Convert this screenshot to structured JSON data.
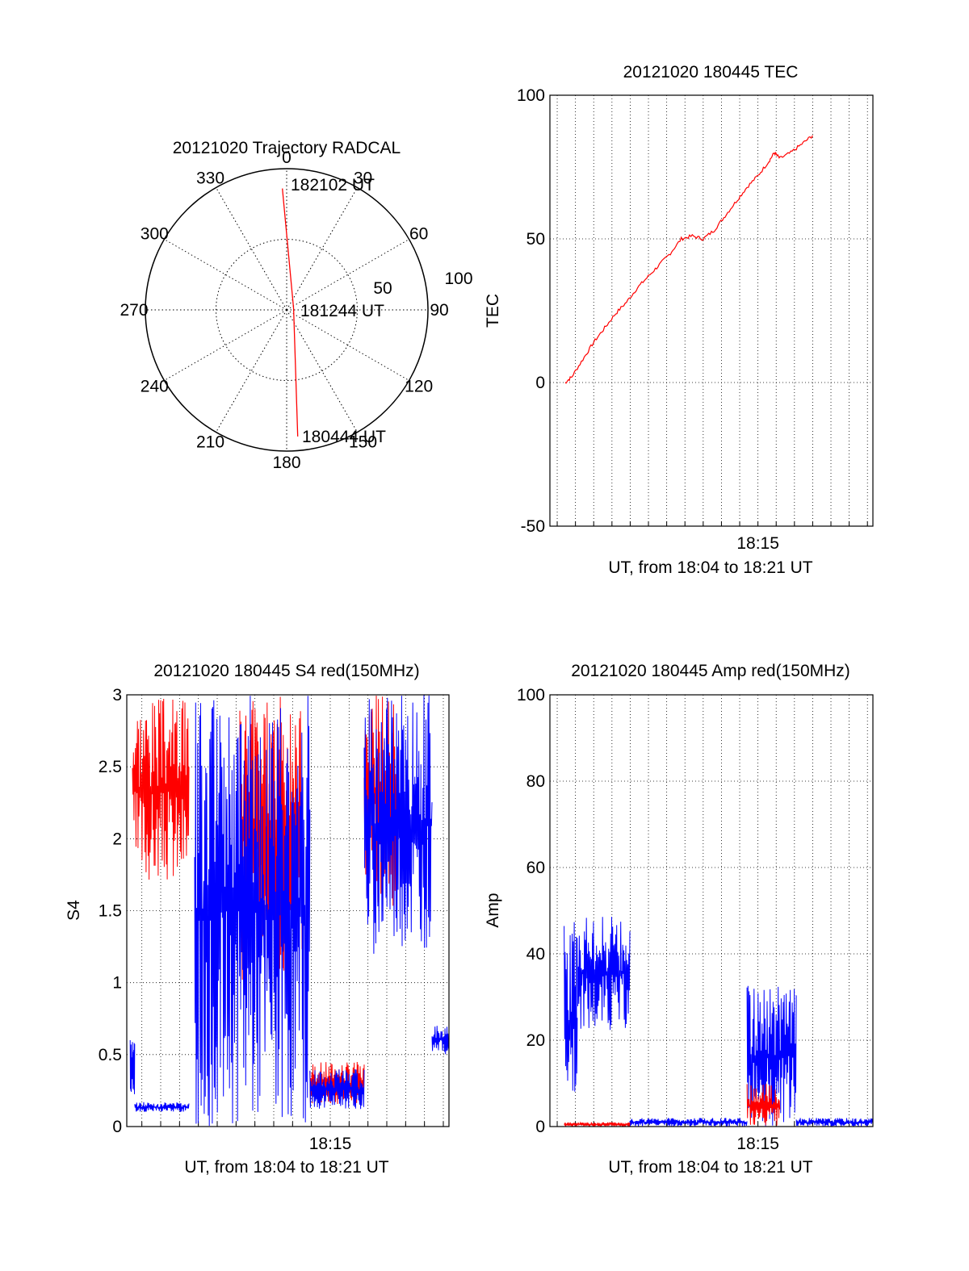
{
  "chart_data": [
    {
      "id": "trajectory",
      "type": "polar",
      "title": "20121020 Trajectory RADCAL",
      "angle_labels": [
        "0",
        "30",
        "60",
        "90",
        "120",
        "150",
        "180",
        "210",
        "240",
        "270",
        "300",
        "330"
      ],
      "radius_labels": [
        "50",
        "100"
      ],
      "rlim": [
        0,
        100
      ],
      "point_labels": [
        "182102 UT",
        "181244 UT",
        "180444 UT"
      ],
      "trajectory": [
        {
          "az": 358,
          "r": 86
        },
        {
          "az": 80,
          "r": 5
        },
        {
          "az": 175,
          "r": 90
        }
      ],
      "series_color": "#ff0000",
      "grid": true
    },
    {
      "id": "tec",
      "type": "line",
      "title": "20121020 180445 TEC",
      "xlabel": "UT, from 18:04 to 18:21 UT",
      "ylabel": "TEC",
      "ylim": [
        -50,
        100
      ],
      "yticks": [
        "-50",
        "0",
        "50",
        "100"
      ],
      "xlim": [
        18.06,
        18.355
      ],
      "xtick_labels": [
        {
          "x": 18.25,
          "label": "18:15"
        }
      ],
      "grid": true,
      "series": [
        {
          "color": "#ff0000",
          "points": [
            [
              18.074,
              0
            ],
            [
              18.08,
              2
            ],
            [
              18.09,
              8
            ],
            [
              18.1,
              14
            ],
            [
              18.11,
              19
            ],
            [
              18.12,
              24
            ],
            [
              18.13,
              28
            ],
            [
              18.14,
              33
            ],
            [
              18.15,
              37
            ],
            [
              18.16,
              41
            ],
            [
              18.17,
              45
            ],
            [
              18.18,
              50
            ],
            [
              18.19,
              51
            ],
            [
              18.2,
              50
            ],
            [
              18.21,
              53
            ],
            [
              18.22,
              58
            ],
            [
              18.23,
              63
            ],
            [
              18.24,
              68
            ],
            [
              18.25,
              72
            ],
            [
              18.26,
              77
            ],
            [
              18.265,
              80
            ],
            [
              18.27,
              78
            ],
            [
              18.28,
              80
            ],
            [
              18.29,
              83
            ],
            [
              18.3,
              86
            ]
          ]
        }
      ]
    },
    {
      "id": "s4",
      "type": "line",
      "title": "20121020 180445 S4 red(150MHz)",
      "xlabel": "UT, from 18:04 to 18:21 UT",
      "ylabel": "S4",
      "ylim": [
        0,
        3
      ],
      "yticks": [
        "0",
        "0.5",
        "1",
        "1.5",
        "2",
        "2.5",
        "3"
      ],
      "xlim": [
        18.07,
        18.355
      ],
      "xtick_labels": [
        {
          "x": 18.25,
          "label": "18:15"
        }
      ],
      "grid": true,
      "series": [
        {
          "color": "#ff0000",
          "segments": [
            {
              "x0": 18.075,
              "x1": 18.125,
              "lo": 1.7,
              "hi": 3.0,
              "seed": 3
            },
            {
              "x0": 18.17,
              "x1": 18.225,
              "lo": 1.0,
              "hi": 3.0,
              "seed": 5
            },
            {
              "x0": 18.232,
              "x1": 18.28,
              "lo": 0.15,
              "hi": 0.45,
              "seed": 7
            },
            {
              "x0": 18.28,
              "x1": 18.31,
              "lo": 1.5,
              "hi": 3.0,
              "seed": 9
            }
          ]
        },
        {
          "color": "#0000ff",
          "segments": [
            {
              "x0": 18.073,
              "x1": 18.077,
              "lo": 0.2,
              "hi": 0.62,
              "seed": 11
            },
            {
              "x0": 18.077,
              "x1": 18.125,
              "lo": 0.1,
              "hi": 0.17,
              "seed": 13
            },
            {
              "x0": 18.13,
              "x1": 18.232,
              "lo": 0.0,
              "hi": 3.0,
              "seed": 15
            },
            {
              "x0": 18.232,
              "x1": 18.28,
              "lo": 0.12,
              "hi": 0.4,
              "seed": 17
            },
            {
              "x0": 18.28,
              "x1": 18.34,
              "lo": 1.2,
              "hi": 3.0,
              "seed": 19
            },
            {
              "x0": 18.34,
              "x1": 18.355,
              "lo": 0.5,
              "hi": 0.7,
              "seed": 21
            }
          ]
        }
      ]
    },
    {
      "id": "amp",
      "type": "line",
      "title": "20121020 180445 Amp red(150MHz)",
      "xlabel": "UT, from 18:04 to 18:21 UT",
      "ylabel": "Amp",
      "ylim": [
        0,
        100
      ],
      "yticks": [
        "0",
        "20",
        "40",
        "60",
        "80",
        "100"
      ],
      "xlim": [
        18.06,
        18.355
      ],
      "xtick_labels": [
        {
          "x": 18.25,
          "label": "18:15"
        }
      ],
      "grid": true,
      "series": [
        {
          "color": "#0000ff",
          "segments": [
            {
              "x0": 18.073,
              "x1": 18.085,
              "lo": 0,
              "hi": 48,
              "seed": 23
            },
            {
              "x0": 18.085,
              "x1": 18.133,
              "lo": 22,
              "hi": 49,
              "seed": 25
            },
            {
              "x0": 18.133,
              "x1": 18.24,
              "lo": 0,
              "hi": 2,
              "seed": 27
            },
            {
              "x0": 18.24,
              "x1": 18.285,
              "lo": 0,
              "hi": 33,
              "seed": 29
            },
            {
              "x0": 18.285,
              "x1": 18.355,
              "lo": 0,
              "hi": 2,
              "seed": 31
            }
          ]
        },
        {
          "color": "#ff0000",
          "segments": [
            {
              "x0": 18.073,
              "x1": 18.133,
              "lo": 0,
              "hi": 1,
              "seed": 33
            },
            {
              "x0": 18.24,
              "x1": 18.27,
              "lo": 0,
              "hi": 10,
              "seed": 35
            }
          ]
        }
      ]
    }
  ]
}
